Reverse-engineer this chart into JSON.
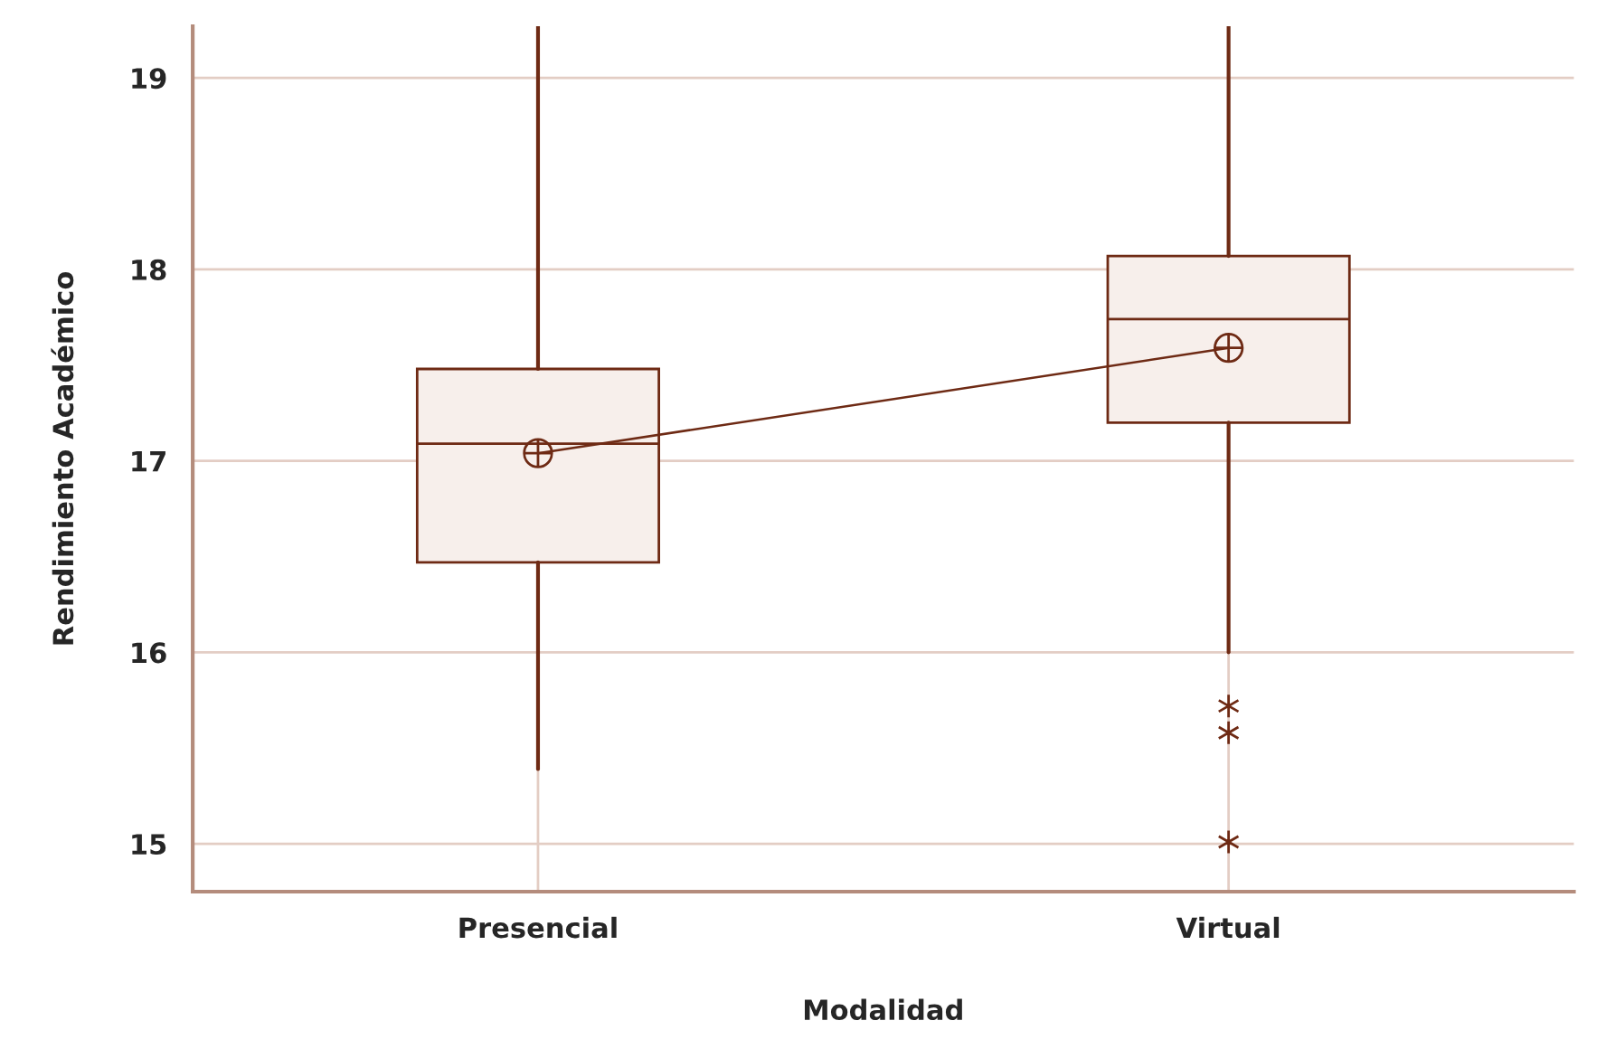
{
  "chart_data": {
    "type": "box",
    "xlabel": "Modalidad",
    "ylabel": "Rendimiento Académico",
    "categories": [
      "Presencial",
      "Virtual"
    ],
    "color": "#6e2a14",
    "boxes": [
      {
        "low": 15.39,
        "q1": 16.47,
        "median": 17.09,
        "q3": 17.48,
        "high": 19.27,
        "mean": 17.04
      },
      {
        "low": 16.0,
        "q1": 17.2,
        "median": 17.74,
        "q3": 18.07,
        "high": 19.27,
        "mean": 17.59,
        "outliers": [
          15.72,
          15.58,
          15.01
        ]
      }
    ],
    "series": [
      {
        "type": "line",
        "color": "#6e2a14",
        "values": [
          17.04,
          17.59
        ]
      }
    ],
    "ylim": [
      14.75,
      19.27
    ],
    "yticks": [
      15,
      16,
      17,
      18,
      19
    ],
    "grid": true
  }
}
